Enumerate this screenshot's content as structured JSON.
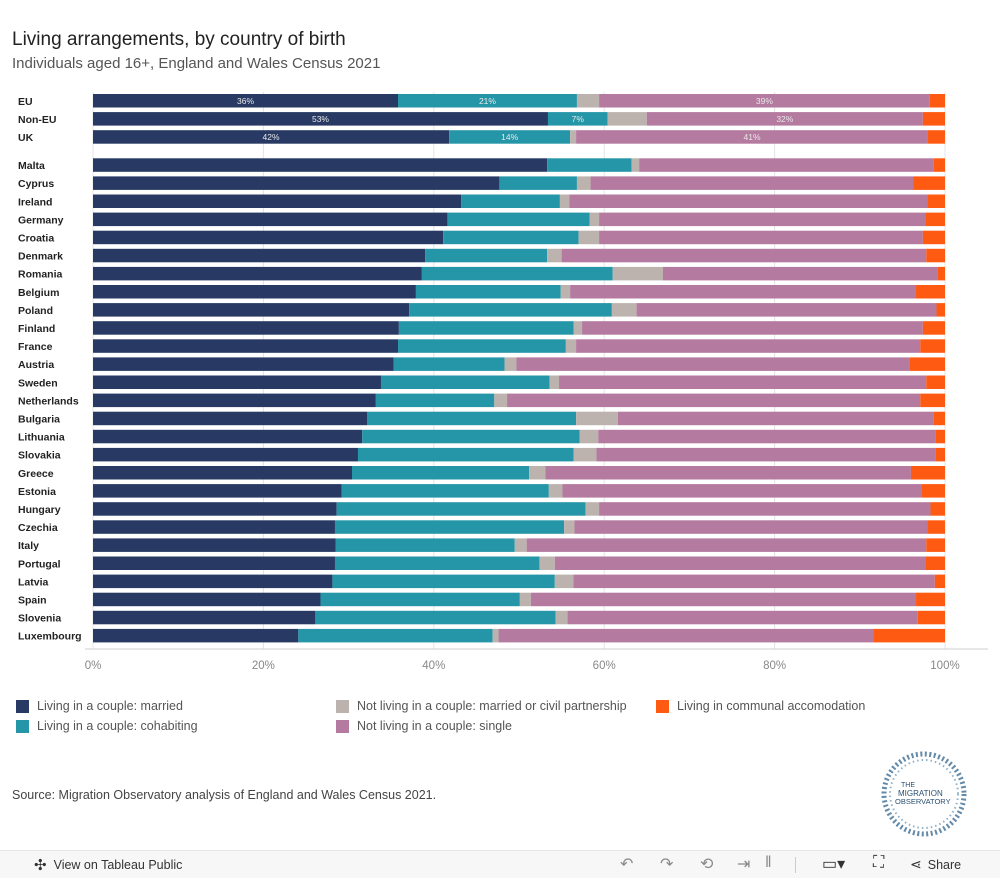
{
  "header": {
    "title": "Living arrangements, by country of birth",
    "subtitle": "Individuals aged 16+, England and Wales Census 2021"
  },
  "chart_data": {
    "type": "bar",
    "orientation": "horizontal",
    "stacked": true,
    "xlim": [
      0,
      100
    ],
    "x_ticks": [
      "0%",
      "20%",
      "40%",
      "60%",
      "80%",
      "100%"
    ],
    "grid": true,
    "legend_placement": "bottom",
    "series_names": [
      "Living in a couple: married",
      "Living in a couple: cohabiting",
      "Not living in a couple: married or civil partnership",
      "Not living in a couple: single",
      "Living in communal accomodation"
    ],
    "colors": [
      "#283a63",
      "#2596a8",
      "#bdb3ae",
      "#b47aa0",
      "#ff5a12"
    ],
    "groups": [
      {
        "rows": [
          {
            "category": "EU",
            "values": [
              35.8,
              21.0,
              2.6,
              38.8,
              1.8
            ],
            "labels": [
              "36%",
              "21%",
              "",
              "39%",
              ""
            ]
          },
          {
            "category": "Non-EU",
            "values": [
              53.4,
              7.0,
              4.6,
              32.4,
              2.6
            ],
            "labels": [
              "53%",
              "7%",
              "",
              "32%",
              ""
            ]
          },
          {
            "category": "UK",
            "values": [
              41.8,
              14.2,
              0.7,
              41.3,
              2.0
            ],
            "labels": [
              "42%",
              "14%",
              "",
              "41%",
              ""
            ]
          }
        ]
      },
      {
        "rows": [
          {
            "category": "Malta",
            "values": [
              53.3,
              9.9,
              0.9,
              34.6,
              1.3
            ]
          },
          {
            "category": "Cyprus",
            "values": [
              47.7,
              9.1,
              1.6,
              37.9,
              3.7
            ]
          },
          {
            "category": "Ireland",
            "values": [
              43.2,
              11.6,
              1.1,
              42.0,
              2.1
            ]
          },
          {
            "category": "Germany",
            "values": [
              41.6,
              16.7,
              1.1,
              38.3,
              2.3
            ]
          },
          {
            "category": "Croatia",
            "values": [
              41.1,
              15.9,
              2.4,
              38.0,
              2.6
            ]
          },
          {
            "category": "Denmark",
            "values": [
              39.0,
              14.3,
              1.7,
              42.8,
              2.2
            ]
          },
          {
            "category": "Romania",
            "values": [
              38.6,
              22.4,
              5.9,
              32.2,
              0.9
            ]
          },
          {
            "category": "Belgium",
            "values": [
              37.9,
              17.0,
              1.1,
              40.6,
              3.4
            ]
          },
          {
            "category": "Poland",
            "values": [
              37.1,
              23.8,
              2.9,
              35.2,
              1.0
            ]
          },
          {
            "category": "Finland",
            "values": [
              35.9,
              20.5,
              1.0,
              40.0,
              2.6
            ]
          },
          {
            "category": "France",
            "values": [
              35.8,
              19.7,
              1.2,
              40.4,
              2.9
            ]
          },
          {
            "category": "Austria",
            "values": [
              35.3,
              13.0,
              1.4,
              46.1,
              4.2
            ]
          },
          {
            "category": "Sweden",
            "values": [
              33.8,
              19.8,
              1.1,
              43.1,
              2.2
            ]
          },
          {
            "category": "Netherlands",
            "values": [
              33.2,
              13.9,
              1.5,
              48.5,
              2.9
            ]
          },
          {
            "category": "Bulgaria",
            "values": [
              32.2,
              24.5,
              4.9,
              37.1,
              1.3
            ]
          },
          {
            "category": "Lithuania",
            "values": [
              31.6,
              25.5,
              2.2,
              39.6,
              1.1
            ]
          },
          {
            "category": "Slovakia",
            "values": [
              31.1,
              25.3,
              2.7,
              39.8,
              1.1
            ]
          },
          {
            "category": "Greece",
            "values": [
              30.4,
              20.8,
              1.9,
              42.9,
              4.0
            ]
          },
          {
            "category": "Estonia",
            "values": [
              29.2,
              24.3,
              1.6,
              42.1,
              2.8
            ]
          },
          {
            "category": "Hungary",
            "values": [
              28.6,
              29.2,
              1.6,
              38.9,
              1.7
            ]
          },
          {
            "category": "Czechia",
            "values": [
              28.4,
              26.9,
              1.2,
              41.4,
              2.1
            ]
          },
          {
            "category": "Italy",
            "values": [
              28.5,
              21.0,
              1.4,
              46.9,
              2.2
            ]
          },
          {
            "category": "Portugal",
            "values": [
              28.4,
              24.0,
              1.8,
              43.5,
              2.3
            ]
          },
          {
            "category": "Latvia",
            "values": [
              28.1,
              26.1,
              2.2,
              42.4,
              1.2
            ]
          },
          {
            "category": "Spain",
            "values": [
              26.7,
              23.4,
              1.3,
              45.2,
              3.4
            ]
          },
          {
            "category": "Slovenia",
            "values": [
              26.1,
              28.2,
              1.4,
              41.1,
              3.2
            ]
          },
          {
            "category": "Luxembourg",
            "values": [
              24.1,
              22.8,
              0.7,
              44.0,
              8.4
            ]
          }
        ]
      }
    ]
  },
  "legend": {
    "items": [
      {
        "label": "Living in a couple: married",
        "color": "#283a63"
      },
      {
        "label": "Living in a couple: cohabiting",
        "color": "#2596a8"
      },
      {
        "label": "Not living in a couple: married or civil partnership",
        "color": "#bdb3ae"
      },
      {
        "label": "Not living in a couple: single",
        "color": "#b47aa0"
      },
      {
        "label": "Living in communal accomodation",
        "color": "#ff5a12"
      }
    ]
  },
  "source": "Source: Migration Observatory analysis of England and Wales Census 2021.",
  "logo": {
    "line1": "THE",
    "line2": "MIGRATION",
    "line3": "OBSERVATORY"
  },
  "toolbar": {
    "view_label": "View on Tableau Public",
    "share_label": "Share",
    "icons": {
      "view": "tableau-icon",
      "undo": "undo-icon",
      "redo": "redo-icon",
      "revert": "revert-icon",
      "forward": "forward-icon",
      "download": "download-icon",
      "fullscreen": "fullscreen-icon",
      "share": "share-icon"
    }
  }
}
